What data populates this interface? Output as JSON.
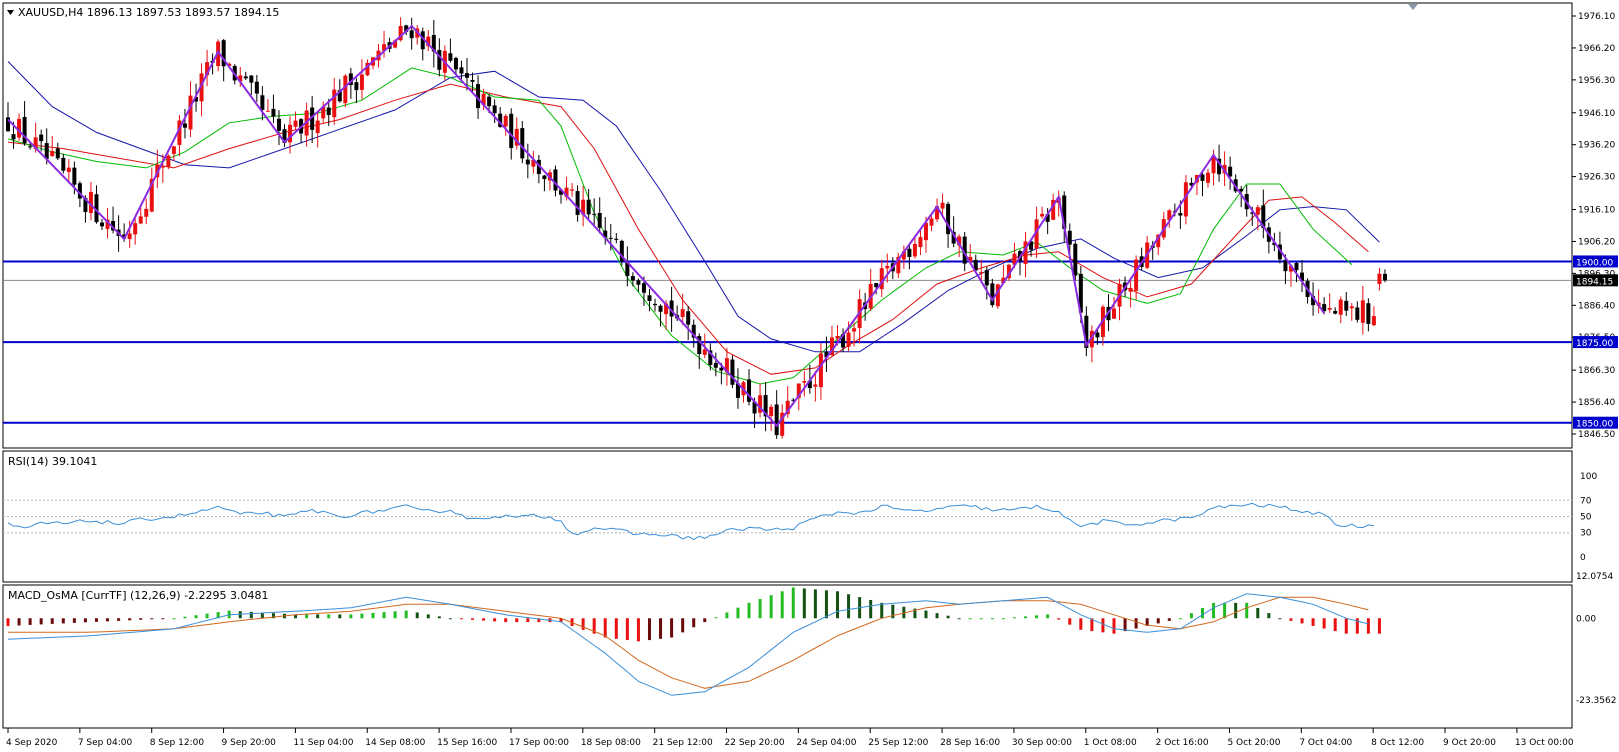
{
  "panels": {
    "main": {
      "header": "XAUUSD,H4  1896.13 1897.53 1893.57 1894.15",
      "menu_icon": "triangle-down-icon",
      "price_ticks": [
        "1976.10",
        "1966.20",
        "1956.30",
        "1946.10",
        "1936.20",
        "1926.30",
        "1916.10",
        "1906.20",
        "1896.30",
        "1886.40",
        "1876.50",
        "1866.30",
        "1856.40",
        "1846.50"
      ],
      "current_price": "1894.15",
      "levels": [
        {
          "value": 1900.0,
          "label": "1900.00"
        },
        {
          "value": 1875.0,
          "label": "1875.00"
        },
        {
          "value": 1850.0,
          "label": "1850.00"
        }
      ],
      "level_color": "#0000cc",
      "range": [
        1846.5,
        1976.1
      ]
    },
    "rsi": {
      "header": "RSI(14) 39.1041",
      "ticks": [
        "100",
        "70",
        "50",
        "30",
        "0"
      ],
      "levels": [
        70,
        50,
        30
      ],
      "range": [
        0,
        100
      ],
      "color": "#3a8fd8"
    },
    "macd": {
      "header": "MACD_OsMA [CurrTF] (12,26,9) -2.2295 3.0481",
      "ticks": [
        "12.0754",
        "0.00",
        "-23.3562"
      ],
      "range": [
        -23.3562,
        12.0754
      ],
      "pos_up": "#22bb22",
      "pos_down": "#145214",
      "neg_down": "#e81010",
      "neg_up": "#6b0a0a"
    }
  },
  "time_axis": [
    "4 Sep 2020",
    "7 Sep 04:00",
    "8 Sep 12:00",
    "9 Sep 20:00",
    "11 Sep 04:00",
    "14 Sep 08:00",
    "15 Sep 16:00",
    "17 Sep 00:00",
    "18 Sep 08:00",
    "21 Sep 12:00",
    "22 Sep 20:00",
    "24 Sep 04:00",
    "25 Sep 12:00",
    "28 Sep 16:00",
    "30 Sep 00:00",
    "1 Oct 08:00",
    "2 Oct 16:00",
    "5 Oct 20:00",
    "7 Oct 04:00",
    "8 Oct 12:00",
    "9 Oct 20:00",
    "13 Oct 00:00"
  ],
  "colors": {
    "bull": "#e81010",
    "bear": "#000000",
    "zigzag": "#8a2be2",
    "ma_fast": "#00bb00",
    "ma_mid": "#dd1111",
    "ma_slow": "#1515aa",
    "macd_line": "#3a8fd8",
    "signal_line": "#d2691e"
  },
  "chart_data": {
    "type": "candlestick",
    "symbol": "XAUUSD",
    "timeframe": "H4",
    "last_bar": {
      "open": 1896.13,
      "high": 1897.53,
      "low": 1893.57,
      "close": 1894.15
    },
    "zigzag": [
      {
        "i": 0,
        "price": 1944
      },
      {
        "i": 21,
        "price": 1907
      },
      {
        "i": 38,
        "price": 1965
      },
      {
        "i": 50,
        "price": 1937
      },
      {
        "i": 73,
        "price": 1973
      },
      {
        "i": 139,
        "price": 1849
      },
      {
        "i": 168,
        "price": 1917
      },
      {
        "i": 178,
        "price": 1888
      },
      {
        "i": 190,
        "price": 1920
      },
      {
        "i": 195,
        "price": 1874
      },
      {
        "i": 218,
        "price": 1933
      },
      {
        "i": 238,
        "price": 1884
      }
    ],
    "ma_fast": [
      [
        0,
        1938
      ],
      [
        8,
        1934
      ],
      [
        16,
        1931
      ],
      [
        25,
        1929
      ],
      [
        32,
        1934
      ],
      [
        40,
        1943
      ],
      [
        48,
        1945
      ],
      [
        56,
        1946
      ],
      [
        64,
        1950
      ],
      [
        73,
        1960
      ],
      [
        80,
        1957
      ],
      [
        88,
        1951
      ],
      [
        96,
        1950
      ],
      [
        100,
        1942
      ],
      [
        106,
        1915
      ],
      [
        112,
        1895
      ],
      [
        120,
        1877
      ],
      [
        128,
        1866
      ],
      [
        136,
        1862
      ],
      [
        142,
        1864
      ],
      [
        150,
        1876
      ],
      [
        158,
        1888
      ],
      [
        166,
        1898
      ],
      [
        172,
        1903
      ],
      [
        180,
        1902
      ],
      [
        186,
        1906
      ],
      [
        192,
        1898
      ],
      [
        198,
        1891
      ],
      [
        206,
        1887
      ],
      [
        212,
        1890
      ],
      [
        218,
        1910
      ],
      [
        224,
        1924
      ],
      [
        230,
        1924
      ],
      [
        236,
        1910
      ],
      [
        243,
        1899
      ]
    ],
    "ma_mid": [
      [
        0,
        1937
      ],
      [
        10,
        1935
      ],
      [
        20,
        1932
      ],
      [
        30,
        1929
      ],
      [
        40,
        1935
      ],
      [
        50,
        1940
      ],
      [
        60,
        1944
      ],
      [
        70,
        1950
      ],
      [
        80,
        1955
      ],
      [
        90,
        1951
      ],
      [
        100,
        1948
      ],
      [
        106,
        1935
      ],
      [
        114,
        1910
      ],
      [
        122,
        1888
      ],
      [
        130,
        1872
      ],
      [
        138,
        1865
      ],
      [
        146,
        1867
      ],
      [
        152,
        1874
      ],
      [
        160,
        1882
      ],
      [
        168,
        1893
      ],
      [
        176,
        1898
      ],
      [
        184,
        1902
      ],
      [
        190,
        1903
      ],
      [
        198,
        1895
      ],
      [
        206,
        1889
      ],
      [
        214,
        1893
      ],
      [
        222,
        1908
      ],
      [
        228,
        1919
      ],
      [
        234,
        1920
      ],
      [
        240,
        1912
      ],
      [
        246,
        1903
      ]
    ],
    "ma_slow": [
      [
        0,
        1962
      ],
      [
        8,
        1948
      ],
      [
        16,
        1940
      ],
      [
        24,
        1935
      ],
      [
        32,
        1930
      ],
      [
        40,
        1929
      ],
      [
        50,
        1935
      ],
      [
        60,
        1941
      ],
      [
        70,
        1947
      ],
      [
        80,
        1957
      ],
      [
        88,
        1959
      ],
      [
        96,
        1951
      ],
      [
        104,
        1950
      ],
      [
        110,
        1942
      ],
      [
        118,
        1922
      ],
      [
        126,
        1900
      ],
      [
        132,
        1883
      ],
      [
        138,
        1876
      ],
      [
        146,
        1872
      ],
      [
        154,
        1872
      ],
      [
        162,
        1881
      ],
      [
        170,
        1891
      ],
      [
        178,
        1898
      ],
      [
        186,
        1904
      ],
      [
        194,
        1907
      ],
      [
        200,
        1901
      ],
      [
        208,
        1895
      ],
      [
        216,
        1898
      ],
      [
        224,
        1908
      ],
      [
        230,
        1916
      ],
      [
        236,
        1917
      ],
      [
        242,
        1916
      ],
      [
        248,
        1906
      ]
    ],
    "rsi": [
      [
        0,
        40
      ],
      [
        3,
        34
      ],
      [
        6,
        42
      ],
      [
        10,
        41
      ],
      [
        15,
        45
      ],
      [
        20,
        41
      ],
      [
        25,
        47
      ],
      [
        30,
        50
      ],
      [
        35,
        56
      ],
      [
        38,
        62
      ],
      [
        42,
        52
      ],
      [
        46,
        55
      ],
      [
        50,
        49
      ],
      [
        55,
        58
      ],
      [
        60,
        50
      ],
      [
        64,
        54
      ],
      [
        68,
        58
      ],
      [
        72,
        62
      ],
      [
        75,
        56
      ],
      [
        80,
        58
      ],
      [
        84,
        46
      ],
      [
        88,
        51
      ],
      [
        92,
        49
      ],
      [
        96,
        51
      ],
      [
        100,
        46
      ],
      [
        102,
        28
      ],
      [
        106,
        36
      ],
      [
        110,
        33
      ],
      [
        114,
        28
      ],
      [
        118,
        28
      ],
      [
        122,
        24
      ],
      [
        126,
        24
      ],
      [
        130,
        32
      ],
      [
        134,
        36
      ],
      [
        138,
        33
      ],
      [
        142,
        36
      ],
      [
        146,
        48
      ],
      [
        150,
        55
      ],
      [
        155,
        55
      ],
      [
        158,
        63
      ],
      [
        162,
        57
      ],
      [
        166,
        57
      ],
      [
        170,
        61
      ],
      [
        174,
        63
      ],
      [
        178,
        58
      ],
      [
        182,
        58
      ],
      [
        186,
        62
      ],
      [
        190,
        57
      ],
      [
        192,
        44
      ],
      [
        194,
        38
      ],
      [
        198,
        44
      ],
      [
        202,
        40
      ],
      [
        206,
        42
      ],
      [
        210,
        46
      ],
      [
        214,
        48
      ],
      [
        218,
        60
      ],
      [
        222,
        64
      ],
      [
        226,
        64
      ],
      [
        230,
        62
      ],
      [
        234,
        57
      ],
      [
        236,
        51
      ],
      [
        238,
        55
      ],
      [
        240,
        40
      ],
      [
        244,
        38
      ],
      [
        247,
        39
      ]
    ],
    "macd_line": [
      [
        0,
        -6
      ],
      [
        15,
        -5
      ],
      [
        30,
        -3
      ],
      [
        40,
        1
      ],
      [
        52,
        2
      ],
      [
        62,
        3
      ],
      [
        72,
        6
      ],
      [
        80,
        4
      ],
      [
        90,
        1
      ],
      [
        100,
        -1
      ],
      [
        108,
        -10
      ],
      [
        114,
        -18
      ],
      [
        120,
        -22
      ],
      [
        126,
        -21
      ],
      [
        134,
        -14
      ],
      [
        142,
        -4
      ],
      [
        150,
        2
      ],
      [
        158,
        4
      ],
      [
        166,
        5
      ],
      [
        172,
        4
      ],
      [
        180,
        5
      ],
      [
        188,
        6
      ],
      [
        194,
        1
      ],
      [
        200,
        -3
      ],
      [
        206,
        -4
      ],
      [
        212,
        -3
      ],
      [
        218,
        3
      ],
      [
        224,
        7
      ],
      [
        230,
        6
      ],
      [
        236,
        4
      ],
      [
        242,
        0
      ],
      [
        247,
        -2
      ]
    ],
    "signal_line": [
      [
        0,
        -4
      ],
      [
        15,
        -4
      ],
      [
        30,
        -3
      ],
      [
        40,
        -1
      ],
      [
        52,
        1
      ],
      [
        62,
        2
      ],
      [
        72,
        4
      ],
      [
        80,
        4
      ],
      [
        90,
        2
      ],
      [
        100,
        0
      ],
      [
        108,
        -5
      ],
      [
        114,
        -12
      ],
      [
        120,
        -17
      ],
      [
        126,
        -20
      ],
      [
        134,
        -18
      ],
      [
        142,
        -12
      ],
      [
        150,
        -5
      ],
      [
        158,
        0
      ],
      [
        166,
        3
      ],
      [
        172,
        4
      ],
      [
        180,
        5
      ],
      [
        188,
        5
      ],
      [
        194,
        4
      ],
      [
        200,
        1
      ],
      [
        206,
        -2
      ],
      [
        212,
        -3
      ],
      [
        218,
        -1
      ],
      [
        224,
        3
      ],
      [
        230,
        6
      ],
      [
        236,
        6
      ],
      [
        242,
        4
      ],
      [
        247,
        2
      ]
    ]
  }
}
